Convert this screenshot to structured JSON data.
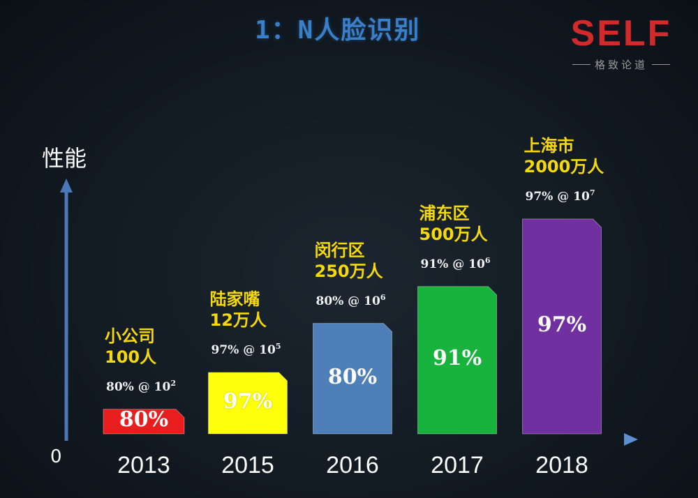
{
  "header": {
    "title": "1：N人脸识别",
    "logo": {
      "text": "SELF",
      "tagline": "格致论道"
    }
  },
  "chart_data": {
    "type": "bar",
    "title": "1：N人脸识别",
    "ylabel": "性能",
    "xlabel": "",
    "y_origin_label": "0",
    "ylim": [
      0,
      100
    ],
    "categories": [
      "2013",
      "2015",
      "2016",
      "2017",
      "2018"
    ],
    "values": [
      80,
      97,
      80,
      91,
      97
    ],
    "bar_labels": [
      "80%",
      "97%",
      "80%",
      "91%",
      "97%"
    ],
    "relative_height": [
      0.08,
      0.2,
      0.36,
      0.48,
      0.7
    ],
    "colors": [
      "#e81d1d",
      "#ffff0a",
      "#4f7fb8",
      "#18b33c",
      "#7030a0"
    ],
    "annotations": [
      {
        "place": "小公司",
        "population": "100人",
        "accuracy": "80% @ 10",
        "exponent": "2"
      },
      {
        "place": "陆家嘴",
        "population": "12万人",
        "accuracy": "97% @ 10",
        "exponent": "5"
      },
      {
        "place": "闵行区",
        "population": "250万人",
        "accuracy": "80% @ 10",
        "exponent": "6"
      },
      {
        "place": "浦东区",
        "population": "500万人",
        "accuracy": "91% @ 10",
        "exponent": "6"
      },
      {
        "place": "上海市",
        "population": "2000万人",
        "accuracy": "97% @ 10",
        "exponent": "7"
      }
    ]
  }
}
